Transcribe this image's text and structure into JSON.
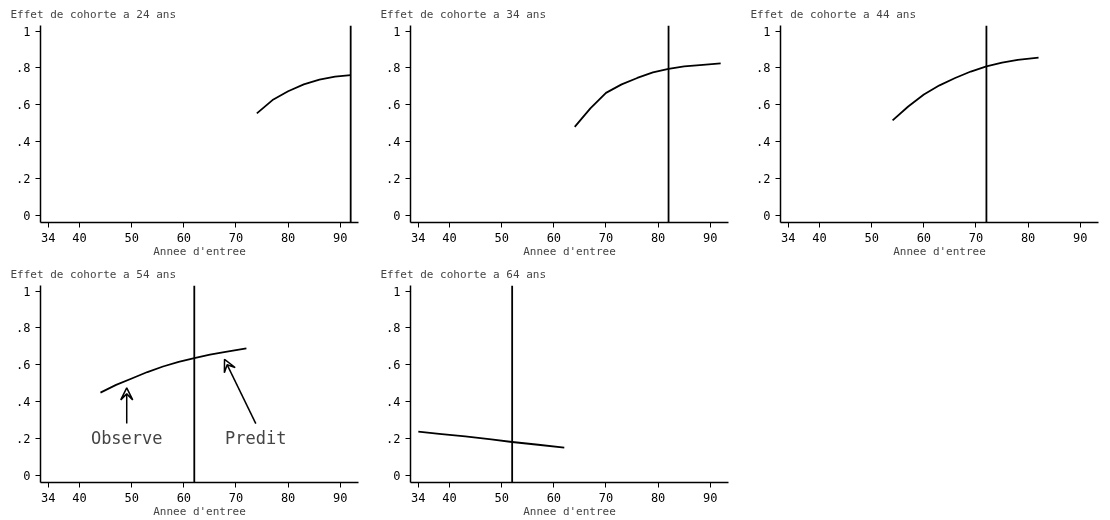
{
  "chart_data": [
    {
      "type": "line",
      "title": "Effet de cohorte a 24 ans",
      "xlabel": "Annee d'entree",
      "x": [
        74,
        77,
        80,
        83,
        86,
        89,
        92
      ],
      "series": [
        {
          "color": "#000000",
          "values": [
            0.553,
            0.625,
            0.673,
            0.71,
            0.736,
            0.752,
            0.76
          ]
        }
      ],
      "xlim": [
        32.5,
        93.5
      ],
      "ylim": [
        -0.04,
        1.03
      ],
      "xticks": [
        34,
        40,
        50,
        60,
        70,
        80,
        90
      ],
      "yticks": [
        0,
        {
          "value": 0.2,
          "label": ".2"
        },
        {
          "value": 0.4,
          "label": ".4"
        },
        {
          "value": 0.6,
          "label": ".6"
        },
        {
          "value": 0.8,
          "label": ".8"
        },
        1
      ],
      "ref_lines": [
        {
          "axis": "x",
          "value": 92,
          "color": "#000000"
        }
      ],
      "grid": false
    },
    {
      "type": "line",
      "title": "Effet de cohorte a 34 ans",
      "xlabel": "Annee d'entree",
      "x": [
        64,
        67,
        70,
        73,
        76,
        79,
        82,
        85,
        88,
        92
      ],
      "series": [
        {
          "color": "#000000",
          "values": [
            0.479,
            0.58,
            0.664,
            0.71,
            0.745,
            0.775,
            0.795,
            0.808,
            0.815,
            0.824
          ]
        }
      ],
      "xlim": [
        32.5,
        93.5
      ],
      "ylim": [
        -0.04,
        1.03
      ],
      "xticks": [
        34,
        40,
        50,
        60,
        70,
        80,
        90
      ],
      "yticks": [
        0,
        {
          "value": 0.2,
          "label": ".2"
        },
        {
          "value": 0.4,
          "label": ".4"
        },
        {
          "value": 0.6,
          "label": ".6"
        },
        {
          "value": 0.8,
          "label": ".8"
        },
        1
      ],
      "ref_lines": [
        {
          "axis": "x",
          "value": 82,
          "color": "#000000"
        }
      ],
      "grid": false
    },
    {
      "type": "line",
      "title": "Effet de cohorte a 44 ans",
      "xlabel": "Annee d'entree",
      "x": [
        54,
        57,
        60,
        63,
        66,
        69,
        72,
        75,
        78,
        82
      ],
      "series": [
        {
          "color": "#000000",
          "values": [
            0.515,
            0.59,
            0.655,
            0.705,
            0.745,
            0.78,
            0.808,
            0.828,
            0.843,
            0.856
          ]
        }
      ],
      "xlim": [
        32.5,
        93.5
      ],
      "ylim": [
        -0.04,
        1.03
      ],
      "xticks": [
        34,
        40,
        50,
        60,
        70,
        80,
        90
      ],
      "yticks": [
        0,
        {
          "value": 0.2,
          "label": ".2"
        },
        {
          "value": 0.4,
          "label": ".4"
        },
        {
          "value": 0.6,
          "label": ".6"
        },
        {
          "value": 0.8,
          "label": ".8"
        },
        1
      ],
      "ref_lines": [
        {
          "axis": "x",
          "value": 72,
          "color": "#000000"
        }
      ],
      "grid": false
    },
    {
      "type": "line",
      "title": "Effet de cohorte a 54 ans",
      "xlabel": "Annee d'entree",
      "x": [
        44,
        47,
        50,
        53,
        56,
        59,
        62,
        65,
        68,
        72
      ],
      "series": [
        {
          "color": "#000000",
          "values": [
            0.448,
            0.49,
            0.525,
            0.56,
            0.59,
            0.615,
            0.635,
            0.655,
            0.67,
            0.689
          ]
        }
      ],
      "xlim": [
        32.5,
        93.5
      ],
      "ylim": [
        -0.04,
        1.03
      ],
      "xticks": [
        34,
        40,
        50,
        60,
        70,
        80,
        90
      ],
      "yticks": [
        0,
        {
          "value": 0.2,
          "label": ".2"
        },
        {
          "value": 0.4,
          "label": ".4"
        },
        {
          "value": 0.6,
          "label": ".6"
        },
        {
          "value": 0.8,
          "label": ".8"
        },
        1
      ],
      "ref_lines": [
        {
          "axis": "x",
          "value": 62,
          "color": "#000000"
        }
      ],
      "grid": false,
      "annotations": [
        "Observe",
        "Predit"
      ]
    },
    {
      "type": "line",
      "title": "Effet de cohorte a 64 ans",
      "xlabel": "Annee d'entree",
      "x": [
        34,
        38,
        43,
        48,
        52,
        57,
        62
      ],
      "series": [
        {
          "color": "#000000",
          "values": [
            0.236,
            0.224,
            0.21,
            0.194,
            0.18,
            0.165,
            0.149
          ]
        }
      ],
      "xlim": [
        32.5,
        93.5
      ],
      "ylim": [
        -0.04,
        1.03
      ],
      "xticks": [
        34,
        40,
        50,
        60,
        70,
        80,
        90
      ],
      "yticks": [
        0,
        {
          "value": 0.2,
          "label": ".2"
        },
        {
          "value": 0.4,
          "label": ".4"
        },
        {
          "value": 0.6,
          "label": ".6"
        },
        {
          "value": 0.8,
          "label": ".8"
        },
        1
      ],
      "ref_lines": [
        {
          "axis": "x",
          "value": 52,
          "color": "#000000"
        }
      ],
      "grid": false
    }
  ]
}
